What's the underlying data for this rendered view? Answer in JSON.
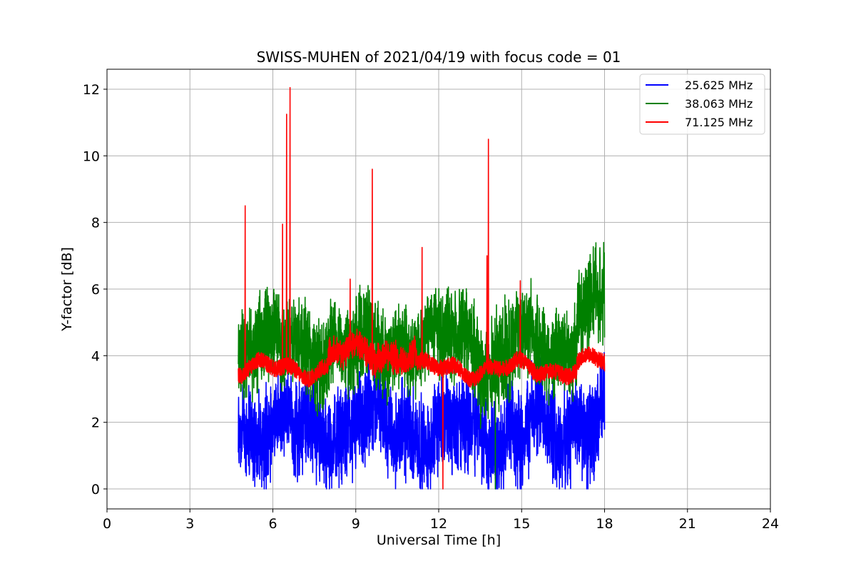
{
  "chart_data": {
    "type": "line",
    "title": "SWISS-MUHEN of 2021/04/19 with focus code = 01",
    "xlabel": "Universal Time [h]",
    "ylabel": "Y-factor [dB]",
    "xlim": [
      0,
      24
    ],
    "ylim": [
      -0.6,
      12.6
    ],
    "xticks": [
      0,
      3,
      6,
      9,
      12,
      15,
      18,
      21,
      24
    ],
    "yticks": [
      0,
      2,
      4,
      6,
      8,
      10,
      12
    ],
    "grid": true,
    "legend_position": "top-right",
    "series": [
      {
        "name": "25.625 MHz",
        "color": "#0000ff",
        "x_range": [
          4.75,
          18.0
        ],
        "mean": 1.8,
        "spread": 1.2,
        "min": 0.0,
        "max": 4.3
      },
      {
        "name": "38.063 MHz",
        "color": "#008000",
        "x_range": [
          4.75,
          18.0
        ],
        "mean": 4.4,
        "spread": 1.0,
        "min": 0.0,
        "max": 7.4
      },
      {
        "name": "71.125 MHz",
        "color": "#ff0000",
        "x_range": [
          4.75,
          18.0
        ],
        "mean": 3.6,
        "spread": 0.25,
        "peaks": [
          {
            "x": 5.0,
            "y": 8.5
          },
          {
            "x": 6.35,
            "y": 7.95
          },
          {
            "x": 6.5,
            "y": 11.25
          },
          {
            "x": 6.62,
            "y": 12.05
          },
          {
            "x": 8.8,
            "y": 6.3
          },
          {
            "x": 9.6,
            "y": 9.6
          },
          {
            "x": 11.4,
            "y": 7.25
          },
          {
            "x": 13.75,
            "y": 7.0
          },
          {
            "x": 13.8,
            "y": 10.5
          },
          {
            "x": 14.95,
            "y": 6.25
          },
          {
            "x": 12.15,
            "y": 0.0
          }
        ]
      }
    ]
  }
}
